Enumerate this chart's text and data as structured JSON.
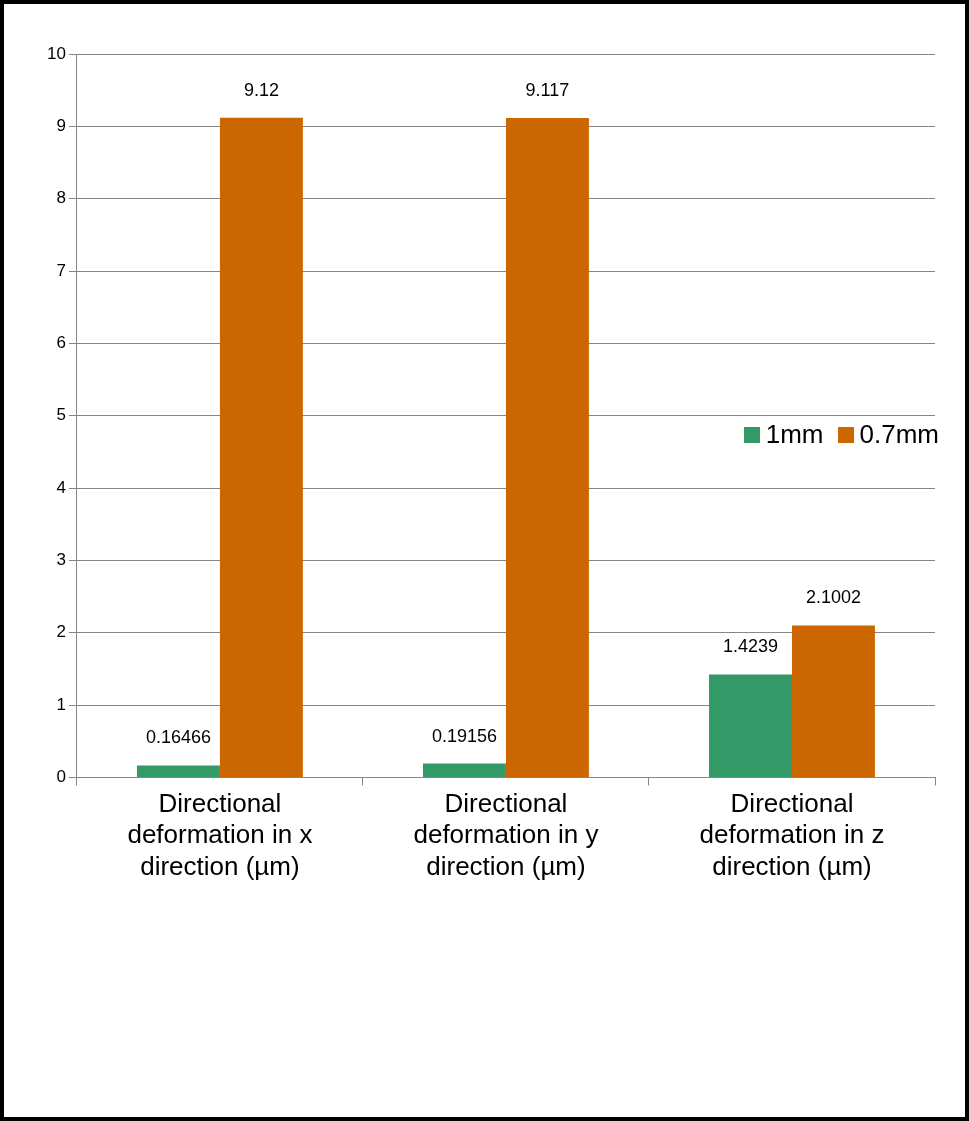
{
  "chart_data": {
    "type": "bar",
    "categories": [
      "Directional deformation in x direction (µm)",
      "Directional deformation in y direction (µm)",
      "Directional deformation in z direction (µm)"
    ],
    "series": [
      {
        "name": "1mm",
        "color": "#339966",
        "values": [
          0.16466,
          0.19156,
          1.4239
        ]
      },
      {
        "name": "0.7mm",
        "color": "#cc6600",
        "values": [
          9.12,
          9.117,
          2.1002
        ]
      }
    ],
    "ylim": [
      0,
      10
    ],
    "yticks": [
      0,
      1,
      2,
      3,
      4,
      5,
      6,
      7,
      8,
      9,
      10
    ],
    "grid": "y",
    "legend": "right",
    "data_labels": true
  }
}
